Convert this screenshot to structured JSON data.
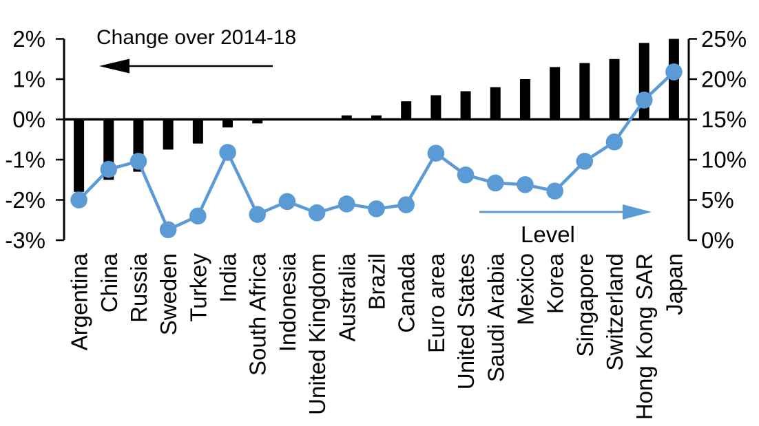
{
  "chart_data": {
    "type": "bar+line dual-axis combo",
    "categories": [
      "Argentina",
      "China",
      "Russia",
      "Sweden",
      "Turkey",
      "India",
      "South Africa",
      "Indonesia",
      "United Kingdom",
      "Australia",
      "Brazil",
      "Canada",
      "Euro area",
      "United States",
      "Saudi Arabia",
      "Mexico",
      "Korea",
      "Singapore",
      "Switzerland",
      "Hong Kong SAR",
      "Japan"
    ],
    "series": [
      {
        "name": "Change over 2014-18",
        "type": "bar",
        "axis": "left",
        "color": "#000000",
        "unit": "percentage points",
        "values": [
          -1.8,
          -1.5,
          -1.3,
          -0.75,
          -0.6,
          -0.2,
          -0.1,
          0,
          0,
          0.1,
          0.1,
          0.45,
          0.6,
          0.7,
          0.8,
          1.0,
          1.3,
          1.4,
          1.5,
          1.9,
          2.0
        ]
      },
      {
        "name": "Level",
        "type": "line",
        "axis": "right",
        "color": "#5B9BD5",
        "unit": "%",
        "values": [
          5.0,
          8.8,
          9.8,
          1.3,
          3.0,
          10.9,
          3.2,
          4.8,
          3.4,
          4.5,
          3.9,
          4.4,
          10.8,
          8.1,
          7.1,
          6.9,
          6.1,
          9.8,
          12.2,
          17.4,
          20.9
        ]
      }
    ],
    "left_axis": {
      "min": -3,
      "max": 2,
      "tick_labels": [
        "2%",
        "1%",
        "0%",
        "-1%",
        "-2%",
        "-3%"
      ],
      "tick_values": [
        2,
        1,
        0,
        -1,
        -2,
        -3
      ]
    },
    "right_axis": {
      "min": 0,
      "max": 25,
      "tick_labels": [
        "25%",
        "20%",
        "15%",
        "10%",
        "5%",
        "0%"
      ],
      "tick_values": [
        25,
        20,
        15,
        10,
        5,
        0
      ]
    },
    "annotations": [
      {
        "text": "Change over 2014-18",
        "arrow_direction": "left",
        "arrow_color": "#000000"
      },
      {
        "text": "Level",
        "arrow_direction": "right",
        "arrow_color": "#5B9BD5"
      }
    ],
    "grid": false,
    "legend_position": "none (in-plot labels with arrows)"
  },
  "colors": {
    "bar": "#000000",
    "line": "#5B9BD5",
    "background": "#FFFFFF",
    "text": "#000000"
  }
}
